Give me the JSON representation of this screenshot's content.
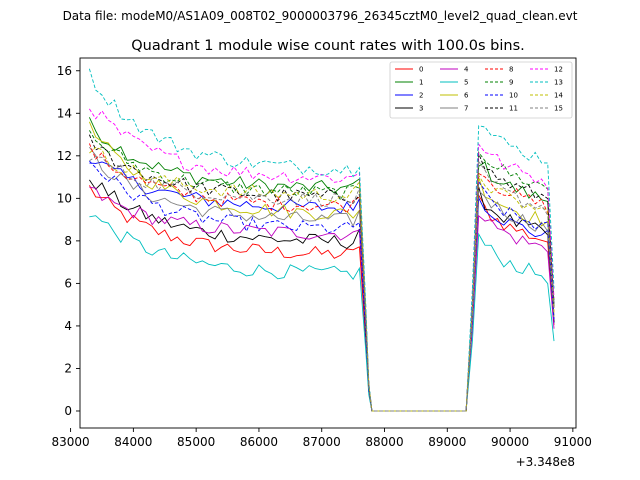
{
  "header": {
    "file_label": "Data file: modeM0/AS1A09_008T02_9000003796_26345cztM0_level2_quad_clean.evt"
  },
  "chart_data": {
    "type": "line",
    "title": "Quadrant 1 module wise count rates with 100.0s bins.",
    "xlabel": "",
    "ylabel": "",
    "x_offset_label": "+3.348e8",
    "xlim": [
      83150,
      91050
    ],
    "ylim": [
      -0.8,
      16.6
    ],
    "xticks": [
      83000,
      84000,
      85000,
      86000,
      87000,
      88000,
      89000,
      90000,
      91000
    ],
    "yticks": [
      0,
      2,
      4,
      6,
      8,
      10,
      12,
      14,
      16
    ],
    "segment1_x": [
      83300,
      87650
    ],
    "segment2_x": [
      89300,
      90700
    ],
    "bin_seconds": 100,
    "legend_position": "top-right",
    "series": [
      {
        "name": "0",
        "color": "#ff0000",
        "dash": "solid",
        "start": 10.5,
        "plateau": 7.3,
        "post": 9.0
      },
      {
        "name": "1",
        "color": "#008000",
        "dash": "solid",
        "start": 13.5,
        "plateau": 10.4,
        "post": 10.9
      },
      {
        "name": "2",
        "color": "#0000ff",
        "dash": "solid",
        "start": 12.0,
        "plateau": 9.5,
        "post": 9.2
      },
      {
        "name": "3",
        "color": "#000000",
        "dash": "solid",
        "start": 11.0,
        "plateau": 7.9,
        "post": 9.3
      },
      {
        "name": "4",
        "color": "#bf00bf",
        "dash": "solid",
        "start": 10.4,
        "plateau": 8.3,
        "post": 8.6
      },
      {
        "name": "5",
        "color": "#00bfbf",
        "dash": "solid",
        "start": 9.4,
        "plateau": 6.4,
        "post": 7.3
      },
      {
        "name": "6",
        "color": "#bfbf00",
        "dash": "solid",
        "start": 13.3,
        "plateau": 9.2,
        "post": 9.9
      },
      {
        "name": "7",
        "color": "#808080",
        "dash": "solid",
        "start": 12.1,
        "plateau": 8.9,
        "post": 9.6
      },
      {
        "name": "8",
        "color": "#ff0000",
        "dash": "dashed",
        "start": 12.3,
        "plateau": 9.6,
        "post": 10.6
      },
      {
        "name": "9",
        "color": "#008000",
        "dash": "dashed",
        "start": 13.0,
        "plateau": 10.2,
        "post": 11.5
      },
      {
        "name": "10",
        "color": "#0000ff",
        "dash": "dashed",
        "start": 11.8,
        "plateau": 8.5,
        "post": 9.6
      },
      {
        "name": "11",
        "color": "#000000",
        "dash": "dashed",
        "start": 12.7,
        "plateau": 10.0,
        "post": 11.0
      },
      {
        "name": "12",
        "color": "#ff00ff",
        "dash": "dashed",
        "start": 14.4,
        "plateau": 10.9,
        "post": 11.8
      },
      {
        "name": "13",
        "color": "#00bfbf",
        "dash": "dashed",
        "start": 15.8,
        "plateau": 11.3,
        "post": 12.8
      },
      {
        "name": "14",
        "color": "#bfbf00",
        "dash": "dashed",
        "start": 12.4,
        "plateau": 10.1,
        "post": 10.3
      },
      {
        "name": "15",
        "color": "#808080",
        "dash": "dashed",
        "start": 12.1,
        "plateau": 9.9,
        "post": 10.5
      }
    ]
  }
}
